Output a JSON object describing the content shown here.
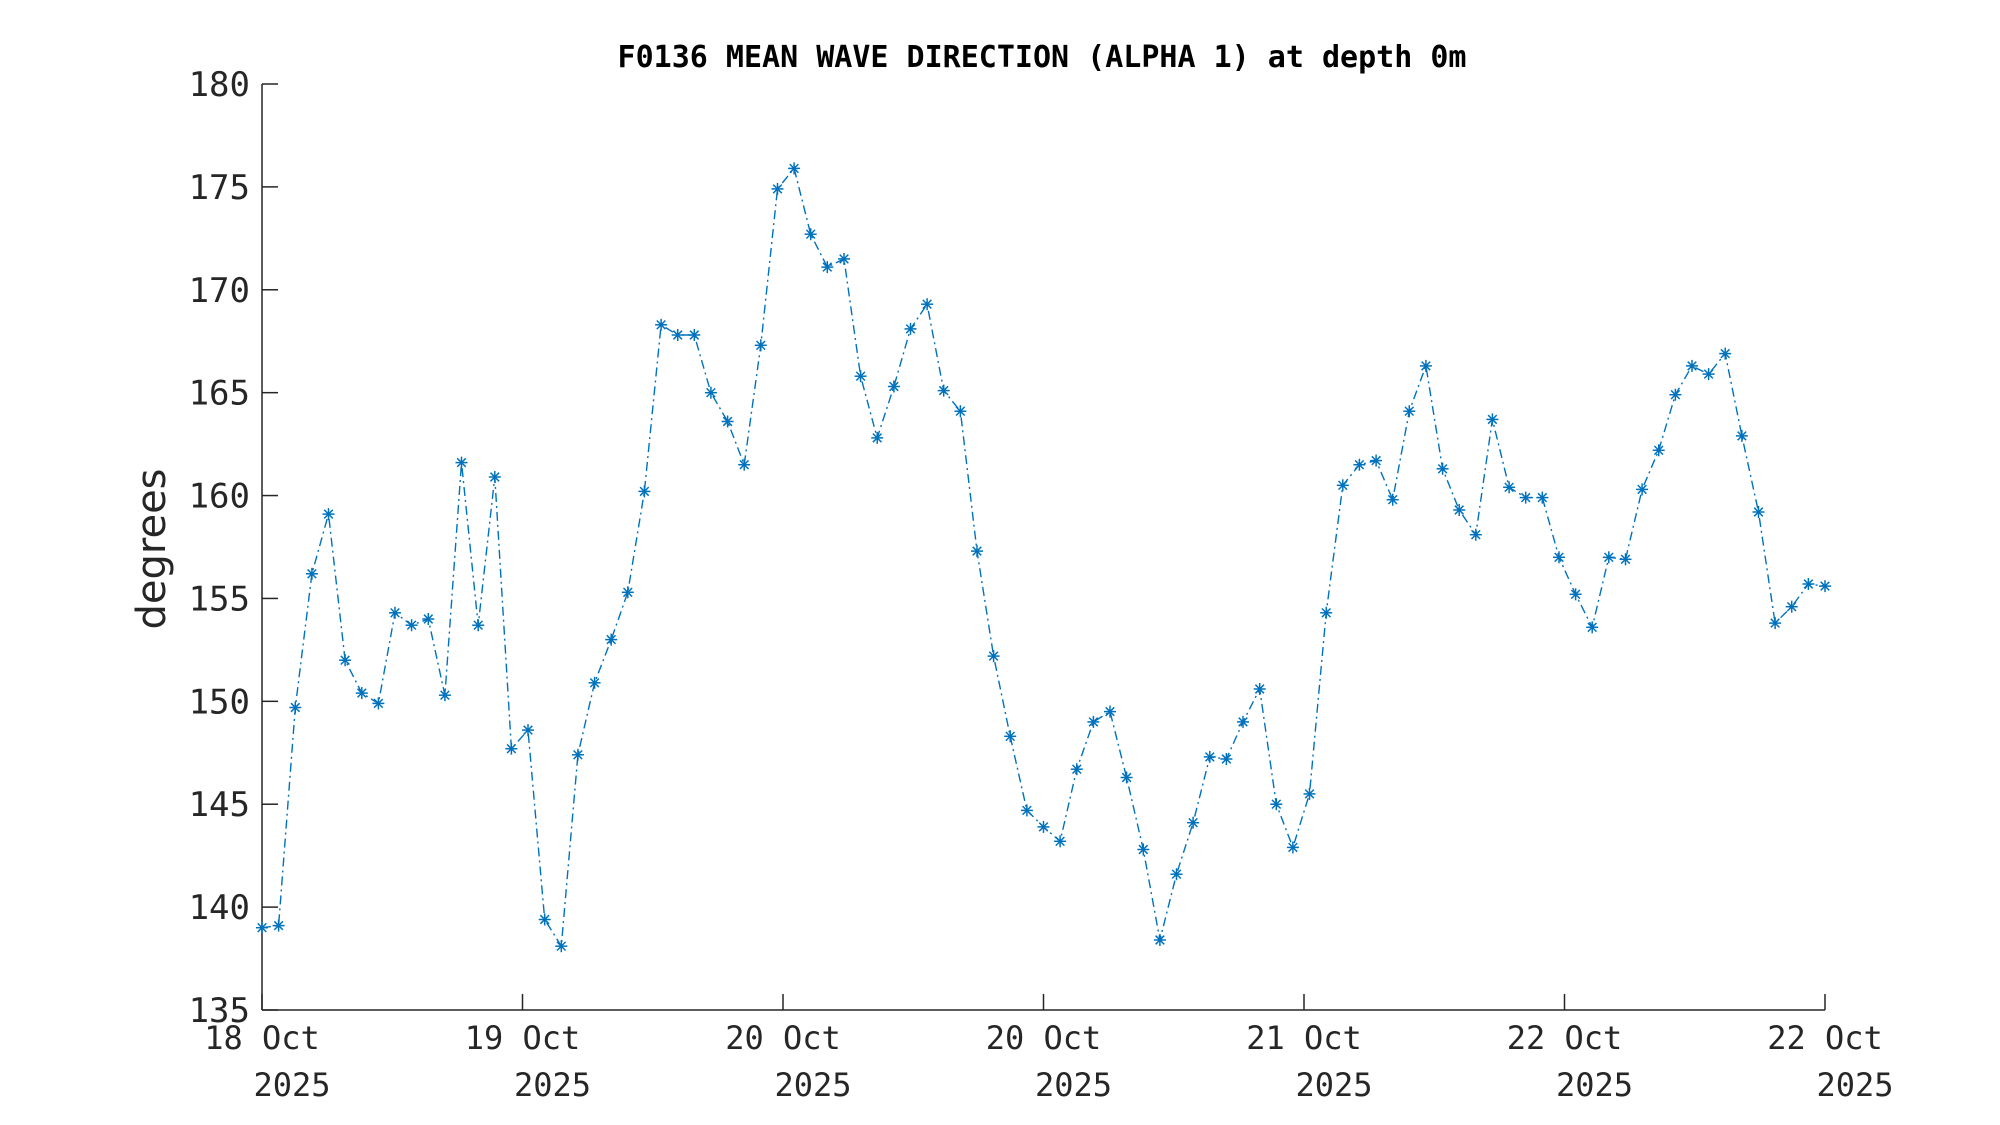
{
  "chart_data": {
    "type": "line",
    "title": "F0136 MEAN WAVE DIRECTION (ALPHA 1) at depth 0m",
    "xlabel": "",
    "ylabel": "degrees",
    "ylim": [
      135,
      180
    ],
    "yticks": [
      135,
      140,
      145,
      150,
      155,
      160,
      165,
      170,
      175,
      180
    ],
    "xticks": [
      {
        "line1": "18 Oct",
        "line2": "2025"
      },
      {
        "line1": "19 Oct",
        "line2": "2025"
      },
      {
        "line1": "20 Oct",
        "line2": "2025"
      },
      {
        "line1": "20 Oct",
        "line2": "2025"
      },
      {
        "line1": "21 Oct",
        "line2": "2025"
      },
      {
        "line1": "22 Oct",
        "line2": "2025"
      },
      {
        "line1": "22 Oct",
        "line2": "2025"
      }
    ],
    "grid": false,
    "legend": "none",
    "marker": "asterisk",
    "line_style": "dash-dot",
    "series_color": "#0072BD",
    "series": [
      {
        "values": [
          139.0,
          139.1,
          149.7,
          156.2,
          159.1,
          152.0,
          150.4,
          149.9,
          154.3,
          153.7,
          154.0,
          150.3,
          161.6,
          153.7,
          160.9,
          147.7,
          148.6,
          139.4,
          138.1,
          147.4,
          150.9,
          153.0,
          155.3,
          160.2,
          168.3,
          167.8,
          167.8,
          165.0,
          163.6,
          161.5,
          167.3,
          174.9,
          175.9,
          172.7,
          171.1,
          171.5,
          165.8,
          162.8,
          165.3,
          168.1,
          169.3,
          165.1,
          164.1,
          157.3,
          152.2,
          148.3,
          144.7,
          143.9,
          143.2,
          146.7,
          149.0,
          149.5,
          146.3,
          142.8,
          138.4,
          141.6,
          144.1,
          147.3,
          147.2,
          149.0,
          150.6,
          145.0,
          142.9,
          145.5,
          154.3,
          160.5,
          161.5,
          161.7,
          159.8,
          164.1,
          166.3,
          161.3,
          159.3,
          158.1,
          163.7,
          160.4,
          159.9,
          159.9,
          157.0,
          155.2,
          153.6,
          157.0,
          156.9,
          160.3,
          162.2,
          164.9,
          166.3,
          165.9,
          166.9,
          162.9,
          159.2,
          153.8,
          154.6,
          155.7,
          155.6
        ]
      }
    ]
  }
}
